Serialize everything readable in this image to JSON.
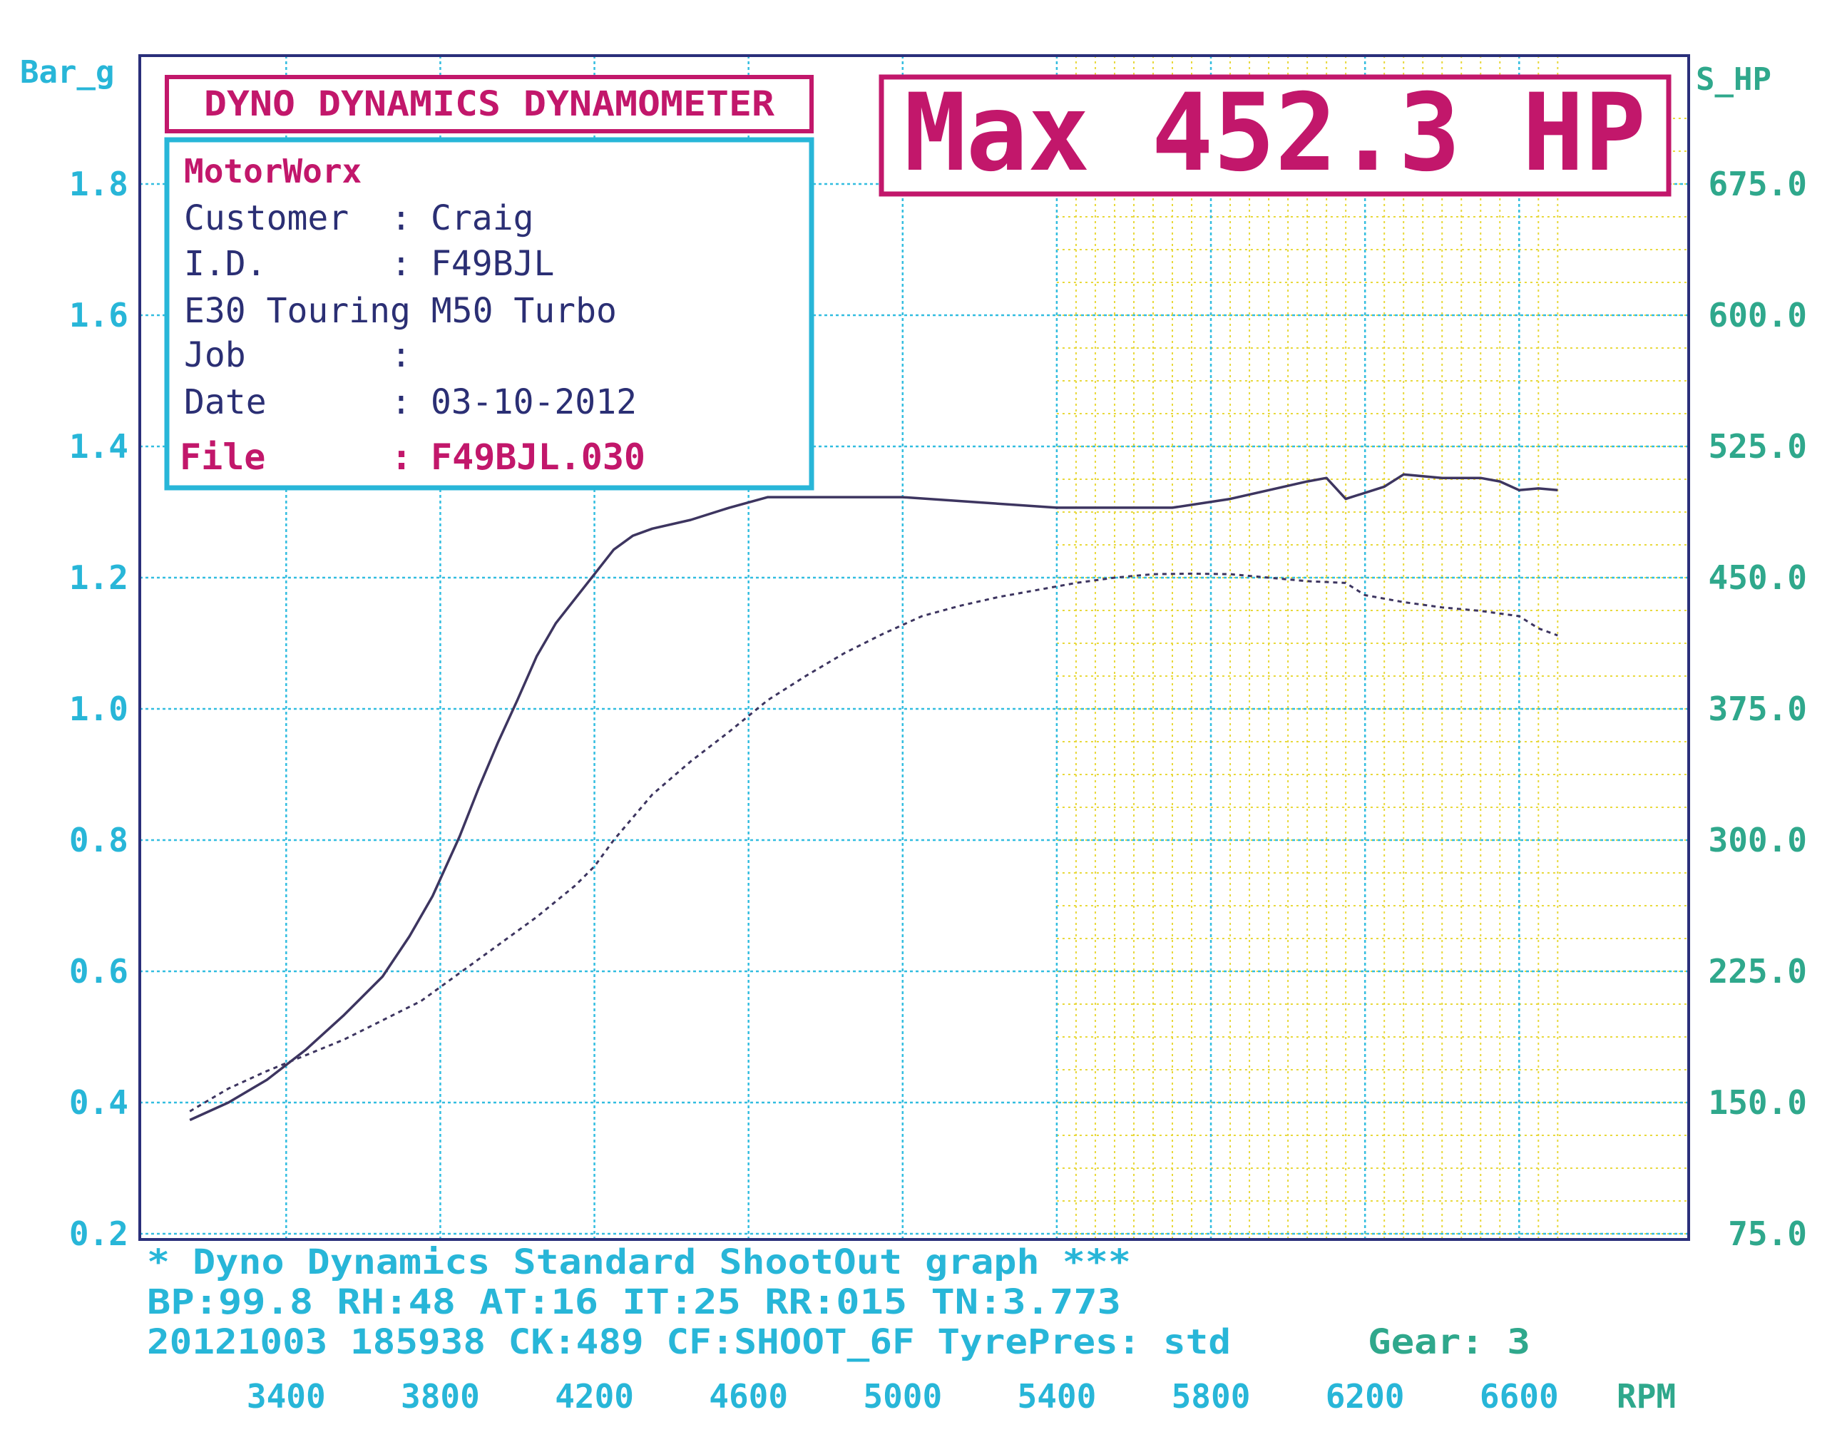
{
  "colors": {
    "frame": "#2a2f7a",
    "cyan": "#28b6d8",
    "teal": "#2fa88c",
    "magenta": "#c2176b",
    "navy": "#2b2f74",
    "grid_cyan": "#32bde0",
    "grid_yellow": "#e8d83a",
    "curve": "#3d3560"
  },
  "header": {
    "title": "DYNO DYNAMICS DYNAMOMETER",
    "max_label": "Max 452.3 HP"
  },
  "info": {
    "company": "MotorWorx",
    "rows": [
      {
        "label": "Customer",
        "sep": ":",
        "value": "Craig"
      },
      {
        "label": "I.D.",
        "sep": ":",
        "value": "F49BJL"
      },
      {
        "label": "E30 Touring M50 Turbo",
        "sep": "",
        "value": ""
      },
      {
        "label": "Job",
        "sep": ":",
        "value": ""
      },
      {
        "label": "Date",
        "sep": ":",
        "value": "03-10-2012"
      }
    ],
    "file_label": "File",
    "file_sep": ":",
    "file_value": "F49BJL.030"
  },
  "footer": {
    "line1": "* Dyno Dynamics Standard ShootOut graph ***",
    "line2": "BP:99.8   RH:48  AT:16  IT:25   RR:015  TN:3.773",
    "line3": "20121003  185938  CK:489  CF:SHOOT_6F  TyrePres: std",
    "gear": "Gear: 3"
  },
  "chart_data": {
    "type": "line",
    "xlabel": "RPM",
    "ylabel_left": "Bar_g",
    "ylabel_right": "S_HP",
    "x_ticks": [
      "3400",
      "3800",
      "4200",
      "4600",
      "5000",
      "5400",
      "5800",
      "6200",
      "6600"
    ],
    "y_left_ticks": [
      "0.2",
      "0.4",
      "0.6",
      "0.8",
      "1.0",
      "1.2",
      "1.4",
      "1.6",
      "1.8"
    ],
    "y_right_ticks": [
      "75.0",
      "150.0",
      "225.0",
      "300.0",
      "375.0",
      "450.0",
      "525.0",
      "600.0",
      "675.0"
    ],
    "xlim": [
      3020,
      7040
    ],
    "ylim_left": [
      0.2,
      1.9
    ],
    "ylim_right": [
      75,
      712.5
    ],
    "grid": true,
    "series": [
      {
        "axis": "right",
        "style": "solid",
        "points": [
          [
            3150,
            140
          ],
          [
            3250,
            150
          ],
          [
            3350,
            163
          ],
          [
            3450,
            180
          ],
          [
            3550,
            200
          ],
          [
            3650,
            222
          ],
          [
            3720,
            245
          ],
          [
            3780,
            268
          ],
          [
            3850,
            302
          ],
          [
            3900,
            330
          ],
          [
            3950,
            356
          ],
          [
            4000,
            380
          ],
          [
            4050,
            405
          ],
          [
            4100,
            424
          ],
          [
            4150,
            438
          ],
          [
            4200,
            452
          ],
          [
            4250,
            466
          ],
          [
            4300,
            474
          ],
          [
            4350,
            478
          ],
          [
            4450,
            483
          ],
          [
            4550,
            490
          ],
          [
            4650,
            496
          ],
          [
            4800,
            496
          ],
          [
            5000,
            496
          ],
          [
            5200,
            493
          ],
          [
            5400,
            490
          ],
          [
            5600,
            490
          ],
          [
            5700,
            490
          ],
          [
            5850,
            495
          ],
          [
            5950,
            500
          ],
          [
            6050,
            505
          ],
          [
            6100,
            507
          ],
          [
            6150,
            495
          ],
          [
            6250,
            502
          ],
          [
            6300,
            509
          ],
          [
            6400,
            507
          ],
          [
            6500,
            507
          ],
          [
            6550,
            505
          ],
          [
            6600,
            500
          ],
          [
            6650,
            501
          ],
          [
            6700,
            500
          ]
        ]
      },
      {
        "axis": "right",
        "style": "dotted",
        "points": [
          [
            3150,
            145
          ],
          [
            3250,
            158
          ],
          [
            3350,
            168
          ],
          [
            3450,
            177
          ],
          [
            3550,
            186
          ],
          [
            3650,
            197
          ],
          [
            3750,
            208
          ],
          [
            3850,
            224
          ],
          [
            3950,
            240
          ],
          [
            4050,
            256
          ],
          [
            4150,
            274
          ],
          [
            4200,
            285
          ],
          [
            4250,
            300
          ],
          [
            4350,
            326
          ],
          [
            4450,
            345
          ],
          [
            4550,
            362
          ],
          [
            4650,
            380
          ],
          [
            4750,
            394
          ],
          [
            4850,
            407
          ],
          [
            4950,
            418
          ],
          [
            5050,
            428
          ],
          [
            5150,
            434
          ],
          [
            5250,
            439
          ],
          [
            5350,
            443
          ],
          [
            5450,
            447
          ],
          [
            5550,
            450
          ],
          [
            5650,
            452
          ],
          [
            5750,
            452.3
          ],
          [
            5850,
            452
          ],
          [
            5950,
            450
          ],
          [
            6050,
            448
          ],
          [
            6150,
            447
          ],
          [
            6200,
            440
          ],
          [
            6300,
            436
          ],
          [
            6400,
            433
          ],
          [
            6500,
            431
          ],
          [
            6600,
            428
          ],
          [
            6650,
            421
          ],
          [
            6700,
            417
          ]
        ]
      }
    ]
  }
}
